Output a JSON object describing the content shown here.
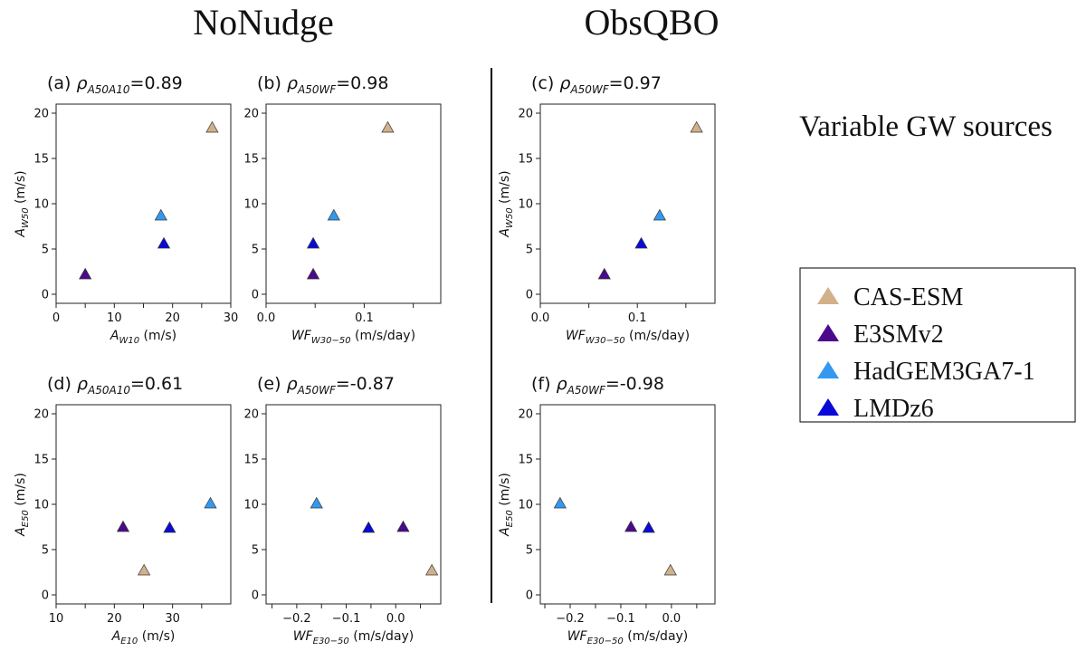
{
  "headings": {
    "left": "NoNudge",
    "right": "ObsQBO",
    "side": "Variable GW sources"
  },
  "chart_data": [
    {
      "type": "scatter",
      "title": [
        "(a) ",
        "ρ",
        "A50A10",
        "=0.89"
      ],
      "xlabel": [
        "A",
        "W10",
        " (m/s)"
      ],
      "ylabel": [
        "A",
        "W50",
        " (m/s)"
      ],
      "xlim": [
        0,
        30
      ],
      "ylim": [
        -1,
        21
      ],
      "xticks": [
        0,
        10,
        20,
        30
      ],
      "minor_xticks": [
        5,
        15,
        25
      ],
      "yticks": [
        0,
        5,
        10,
        15,
        20
      ],
      "series": [
        {
          "name": "CAS-ESM",
          "color": "#d2b08a",
          "x": [
            26.8
          ],
          "values": [
            18.4
          ]
        },
        {
          "name": "E3SMv2",
          "color": "#4b0a8c",
          "x": [
            5.0
          ],
          "values": [
            2.2
          ]
        },
        {
          "name": "HadGEM3GA7-1",
          "color": "#3399f0",
          "x": [
            18.0
          ],
          "values": [
            8.7
          ]
        },
        {
          "name": "LMDz6",
          "color": "#0a0ad8",
          "x": [
            18.5
          ],
          "values": [
            5.6
          ]
        }
      ]
    },
    {
      "type": "scatter",
      "title": [
        "(b) ",
        "ρ",
        "A50WF",
        "=0.98"
      ],
      "xlabel": [
        "WF",
        "W30−50",
        " (m/s/day)"
      ],
      "xlim": [
        0,
        0.178
      ],
      "ylim": [
        -1,
        21
      ],
      "xticks": [
        {
          "value": 0,
          "label": "0.0"
        },
        0.1
      ],
      "minor_xticks": [
        0.05,
        0.15
      ],
      "yticks": [
        0,
        5,
        10,
        15,
        20
      ],
      "series": [
        {
          "color": "#d2b08a",
          "x": [
            0.124
          ],
          "values": [
            18.4
          ]
        },
        {
          "color": "#4b0a8c",
          "x": [
            0.048
          ],
          "values": [
            2.2
          ]
        },
        {
          "color": "#3399f0",
          "x": [
            0.069
          ],
          "values": [
            8.7
          ]
        },
        {
          "color": "#0a0ad8",
          "x": [
            0.048
          ],
          "values": [
            5.6
          ]
        }
      ]
    },
    {
      "type": "scatter",
      "title": [
        "(c) ",
        "ρ",
        "A50WF",
        "=0.97"
      ],
      "xlabel": [
        "WF",
        "W30−50",
        " (m/s/day)"
      ],
      "ylabel": [
        "A",
        "W50",
        " (m/s)"
      ],
      "xlim": [
        0,
        0.18
      ],
      "ylim": [
        -1,
        21
      ],
      "xticks": [
        {
          "value": 0,
          "label": "0.0"
        },
        0.1
      ],
      "minor_xticks": [
        0.05,
        0.15
      ],
      "yticks": [
        0,
        5,
        10,
        15,
        20
      ],
      "series": [
        {
          "color": "#d2b08a",
          "x": [
            0.161
          ],
          "values": [
            18.4
          ]
        },
        {
          "color": "#4b0a8c",
          "x": [
            0.066
          ],
          "values": [
            2.2
          ]
        },
        {
          "color": "#3399f0",
          "x": [
            0.123
          ],
          "values": [
            8.7
          ]
        },
        {
          "color": "#0a0ad8",
          "x": [
            0.104
          ],
          "values": [
            5.6
          ]
        }
      ]
    },
    {
      "type": "scatter",
      "title": [
        "(d) ",
        "ρ",
        "A50A10",
        "=0.61"
      ],
      "xlabel": [
        "A",
        "E10",
        " (m/s)"
      ],
      "ylabel": [
        "A",
        "E50",
        " (m/s)"
      ],
      "xlim": [
        10,
        40
      ],
      "ylim": [
        -1,
        21
      ],
      "xticks": [
        10,
        20,
        30
      ],
      "minor_xticks": [
        15,
        25,
        35
      ],
      "yticks": [
        0,
        5,
        10,
        15,
        20
      ],
      "series": [
        {
          "color": "#d2b08a",
          "x": [
            25.1
          ],
          "values": [
            2.7
          ]
        },
        {
          "color": "#4b0a8c",
          "x": [
            21.5
          ],
          "values": [
            7.5
          ]
        },
        {
          "color": "#3399f0",
          "x": [
            36.5
          ],
          "values": [
            10.1
          ]
        },
        {
          "color": "#0a0ad8",
          "x": [
            29.5
          ],
          "values": [
            7.4
          ]
        }
      ]
    },
    {
      "type": "scatter",
      "title": [
        "(e) ",
        "ρ",
        "A50WF",
        "=-0.87"
      ],
      "xlabel": [
        "WF",
        "E30−50",
        " (m/s/day)"
      ],
      "xlim": [
        -0.262,
        0.091
      ],
      "ylim": [
        -1,
        21
      ],
      "xticks": [
        {
          "value": -0.2,
          "label": "−0.2"
        },
        {
          "value": -0.1,
          "label": "−0.1"
        },
        {
          "value": 0,
          "label": "0.0"
        }
      ],
      "minor_xticks": [
        -0.25,
        -0.15,
        -0.05,
        0.05
      ],
      "yticks": [
        0,
        5,
        10,
        15,
        20
      ],
      "series": [
        {
          "color": "#d2b08a",
          "x": [
            0.073
          ],
          "values": [
            2.7
          ]
        },
        {
          "color": "#4b0a8c",
          "x": [
            0.015
          ],
          "values": [
            7.5
          ]
        },
        {
          "color": "#3399f0",
          "x": [
            -0.16
          ],
          "values": [
            10.1
          ]
        },
        {
          "color": "#0a0ad8",
          "x": [
            -0.055
          ],
          "values": [
            7.4
          ]
        }
      ]
    },
    {
      "type": "scatter",
      "title": [
        "(f) ",
        "ρ",
        "A50WF",
        "=-0.98"
      ],
      "xlabel": [
        "WF",
        "E30−50",
        " (m/s/day)"
      ],
      "ylabel": [
        "A",
        "E50",
        " (m/s)"
      ],
      "xlim": [
        -0.259,
        0.086
      ],
      "ylim": [
        -1,
        21
      ],
      "xticks": [
        {
          "value": -0.2,
          "label": "−0.2"
        },
        {
          "value": -0.1,
          "label": "−0.1"
        },
        {
          "value": 0,
          "label": "0.0"
        }
      ],
      "minor_xticks": [
        -0.25,
        -0.15,
        -0.05,
        0.05
      ],
      "yticks": [
        0,
        5,
        10,
        15,
        20
      ],
      "series": [
        {
          "color": "#d2b08a",
          "x": [
            -0.002
          ],
          "values": [
            2.7
          ]
        },
        {
          "color": "#4b0a8c",
          "x": [
            -0.08
          ],
          "values": [
            7.5
          ]
        },
        {
          "color": "#3399f0",
          "x": [
            -0.22
          ],
          "values": [
            10.1
          ]
        },
        {
          "color": "#0a0ad8",
          "x": [
            -0.045
          ],
          "values": [
            7.4
          ]
        }
      ]
    }
  ]
}
